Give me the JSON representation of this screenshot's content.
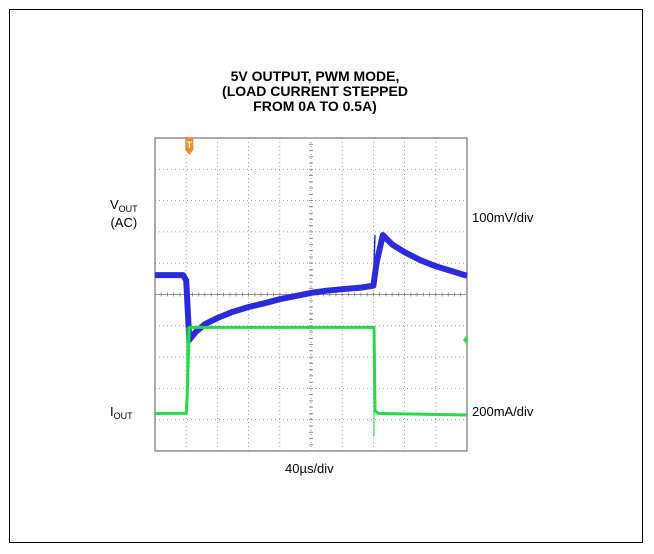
{
  "chart_data": {
    "type": "line",
    "title_lines": [
      "5V OUTPUT, PWM MODE,",
      "(LOAD CURRENT STEPPED",
      "FROM 0A TO 0.5A)"
    ],
    "xlabel": "40µs/div",
    "x_divisions": 10,
    "y_divisions": 10,
    "grid": true,
    "trigger_marker": "T",
    "channels": [
      {
        "name_main": "V",
        "name_sub": "OUT",
        "name_line2": "(AC)",
        "scale": "100mV/div",
        "color": "#2b2bdd",
        "x": [
          0,
          0.9,
          1.0,
          1.1,
          1.3,
          1.6,
          2.0,
          2.5,
          3.0,
          3.5,
          4.0,
          4.5,
          5.0,
          5.5,
          6.0,
          6.6,
          7.0,
          7.1,
          7.3,
          7.6,
          8.0,
          8.5,
          9.0,
          9.5,
          10.0
        ],
        "y": [
          0.62,
          0.62,
          0.45,
          -1.45,
          -1.2,
          -0.95,
          -0.75,
          -0.55,
          -0.4,
          -0.28,
          -0.15,
          -0.05,
          0.05,
          0.12,
          0.17,
          0.22,
          0.28,
          1.0,
          1.9,
          1.6,
          1.35,
          1.1,
          0.9,
          0.75,
          0.6
        ]
      },
      {
        "name_main": "I",
        "name_sub": "OUT",
        "name_line2": "",
        "scale": "200mA/div",
        "color": "#22dd44",
        "x": [
          0,
          1.0,
          1.03,
          1.1,
          7.0,
          7.02,
          7.05,
          7.15,
          10.0
        ],
        "y": [
          -3.8,
          -3.8,
          -3.3,
          -1.05,
          -1.05,
          -1.05,
          -3.7,
          -3.8,
          -3.85
        ]
      }
    ]
  }
}
